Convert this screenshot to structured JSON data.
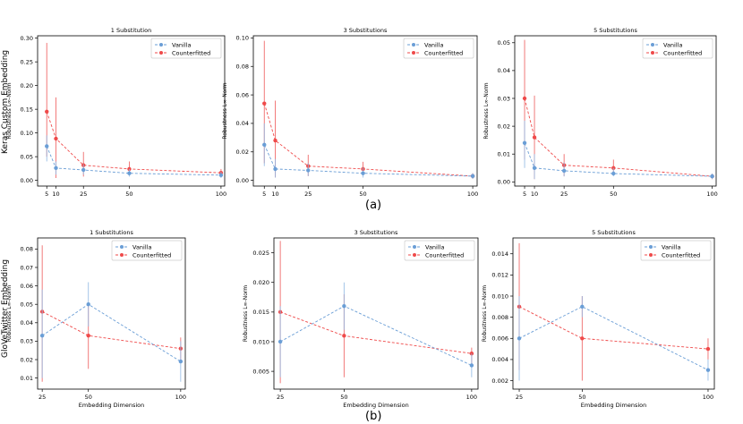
{
  "figure": {
    "caption_a": "(a)",
    "caption_b": "(b)",
    "row_label_a": "Keras Custom Embedding",
    "row_label_b": "GloVeTwitter Embedding",
    "colors": {
      "vanilla": "#6a9ed6",
      "counterfitted": "#ef4a4a",
      "vanilla_err": "#8fb7e3",
      "counterfitted_err": "#ee5b5b"
    }
  },
  "chart_data": [
    {
      "type": "line",
      "title": "1 Substitution",
      "xlabel": "",
      "ylabel": "Robustness L∞-Norm",
      "x": [
        5,
        10,
        25,
        50,
        100
      ],
      "xlim": [
        0,
        102
      ],
      "ylim": [
        -0.012,
        0.305
      ],
      "yticks": [
        0.0,
        0.05,
        0.1,
        0.15,
        0.2,
        0.25,
        0.3
      ],
      "ytick_labels": [
        "0.00",
        "0.05",
        "0.10",
        "0.15",
        "0.20",
        "0.25",
        "0.30"
      ],
      "xticks": [
        5,
        10,
        25,
        50,
        100
      ],
      "xtick_labels": [
        "5",
        "10",
        "25",
        "50",
        "100"
      ],
      "legend": [
        "Vanilla",
        "Counterfitted"
      ],
      "series": [
        {
          "name": "Vanilla",
          "values": [
            0.072,
            0.026,
            0.022,
            0.015,
            0.011
          ],
          "lo": [
            0.04,
            0.012,
            0.012,
            0.008,
            0.005
          ],
          "hi": [
            0.095,
            0.04,
            0.034,
            0.024,
            0.018
          ]
        },
        {
          "name": "Counterfitted",
          "values": [
            0.145,
            0.088,
            0.032,
            0.024,
            0.016
          ],
          "lo": [
            0.05,
            0.005,
            0.008,
            0.012,
            0.008
          ],
          "hi": [
            0.29,
            0.175,
            0.06,
            0.04,
            0.024
          ]
        }
      ]
    },
    {
      "type": "line",
      "title": "3 Substitutions",
      "xlabel": "",
      "ylabel": "Robustness L∞-Norm",
      "x": [
        5,
        10,
        25,
        50,
        100
      ],
      "xlim": [
        0,
        102
      ],
      "ylim": [
        -0.004,
        0.1015
      ],
      "yticks": [
        0.0,
        0.02,
        0.04,
        0.06,
        0.08,
        0.1
      ],
      "ytick_labels": [
        "0.00",
        "0.02",
        "0.04",
        "0.06",
        "0.08",
        "0.10"
      ],
      "xticks": [
        5,
        10,
        25,
        50,
        100
      ],
      "xtick_labels": [
        "5",
        "10",
        "25",
        "50",
        "100"
      ],
      "legend": [
        "Vanilla",
        "Counterfitted"
      ],
      "series": [
        {
          "name": "Vanilla",
          "values": [
            0.025,
            0.008,
            0.007,
            0.005,
            0.003
          ],
          "lo": [
            0.01,
            0.002,
            0.003,
            0.002,
            0.001
          ],
          "hi": [
            0.04,
            0.015,
            0.012,
            0.009,
            0.005
          ]
        },
        {
          "name": "Counterfitted",
          "values": [
            0.054,
            0.028,
            0.01,
            0.008,
            0.003
          ],
          "lo": [
            0.012,
            0.002,
            0.003,
            0.004,
            0.001
          ],
          "hi": [
            0.098,
            0.056,
            0.018,
            0.013,
            0.005
          ]
        }
      ]
    },
    {
      "type": "line",
      "title": "5 Substitutions",
      "xlabel": "",
      "ylabel": "Robustness L∞-Norm",
      "x": [
        5,
        10,
        25,
        50,
        100
      ],
      "xlim": [
        0,
        102
      ],
      "ylim": [
        -0.0015,
        0.0525
      ],
      "yticks": [
        0.0,
        0.01,
        0.02,
        0.03,
        0.04,
        0.05
      ],
      "ytick_labels": [
        "0.00",
        "0.01",
        "0.02",
        "0.03",
        "0.04",
        "0.05"
      ],
      "xticks": [
        5,
        10,
        25,
        50,
        100
      ],
      "xtick_labels": [
        "5",
        "10",
        "25",
        "50",
        "100"
      ],
      "legend": [
        "Vanilla",
        "Counterfitted"
      ],
      "series": [
        {
          "name": "Vanilla",
          "values": [
            0.014,
            0.005,
            0.004,
            0.003,
            0.002
          ],
          "lo": [
            0.005,
            0.001,
            0.002,
            0.002,
            0.001
          ],
          "hi": [
            0.022,
            0.01,
            0.007,
            0.005,
            0.003
          ]
        },
        {
          "name": "Counterfitted",
          "values": [
            0.03,
            0.016,
            0.006,
            0.005,
            0.002
          ],
          "lo": [
            0.008,
            0.001,
            0.002,
            0.003,
            0.001
          ],
          "hi": [
            0.051,
            0.031,
            0.01,
            0.008,
            0.003
          ]
        }
      ]
    },
    {
      "type": "line",
      "title": "1 Substitutions",
      "xlabel": "Embedding Dimension",
      "ylabel": "Robustness L∞-Norm",
      "x": [
        25,
        50,
        100
      ],
      "xlim": [
        22.5,
        102.5
      ],
      "ylim": [
        0.004,
        0.086
      ],
      "yticks": [
        0.01,
        0.02,
        0.03,
        0.04,
        0.05,
        0.06,
        0.07,
        0.08
      ],
      "ytick_labels": [
        "0.01",
        "0.02",
        "0.03",
        "0.04",
        "0.05",
        "0.06",
        "0.07",
        "0.08"
      ],
      "xticks": [
        25,
        50,
        100
      ],
      "xtick_labels": [
        "25",
        "50",
        "100"
      ],
      "legend": [
        "Vanilla",
        "Counterfitted"
      ],
      "series": [
        {
          "name": "Vanilla",
          "values": [
            0.033,
            0.05,
            0.019
          ],
          "lo": [
            0.01,
            0.038,
            0.008
          ],
          "hi": [
            0.058,
            0.062,
            0.03
          ]
        },
        {
          "name": "Counterfitted",
          "values": [
            0.046,
            0.033,
            0.026
          ],
          "lo": [
            0.008,
            0.015,
            0.018
          ],
          "hi": [
            0.082,
            0.051,
            0.032
          ]
        }
      ]
    },
    {
      "type": "line",
      "title": "3 Substitutions",
      "xlabel": "Embedding Dimension",
      "ylabel": "Robustness L∞-Norm",
      "x": [
        25,
        50,
        100
      ],
      "xlim": [
        22.5,
        102.5
      ],
      "ylim": [
        0.002,
        0.0275
      ],
      "yticks": [
        0.005,
        0.01,
        0.015,
        0.02,
        0.025
      ],
      "ytick_labels": [
        "0.005",
        "0.010",
        "0.015",
        "0.020",
        "0.025"
      ],
      "xticks": [
        25,
        50,
        100
      ],
      "xtick_labels": [
        "25",
        "50",
        "100"
      ],
      "legend": [
        "Vanilla",
        "Counterfitted"
      ],
      "series": [
        {
          "name": "Vanilla",
          "values": [
            0.01,
            0.016,
            0.006
          ],
          "lo": [
            0.004,
            0.012,
            0.004
          ],
          "hi": [
            0.016,
            0.02,
            0.008
          ]
        },
        {
          "name": "Counterfitted",
          "values": [
            0.015,
            0.011,
            0.008
          ],
          "lo": [
            0.003,
            0.004,
            0.006
          ],
          "hi": [
            0.027,
            0.018,
            0.009
          ]
        }
      ]
    },
    {
      "type": "line",
      "title": "5 Substitutions",
      "xlabel": "Embedding Dimension",
      "ylabel": "Robustness L∞-Norm",
      "x": [
        25,
        50,
        100
      ],
      "xlim": [
        22.5,
        102.5
      ],
      "ylim": [
        0.0012,
        0.0155
      ],
      "yticks": [
        0.002,
        0.004,
        0.006,
        0.008,
        0.01,
        0.012,
        0.014
      ],
      "ytick_labels": [
        "0.002",
        "0.004",
        "0.006",
        "0.008",
        "0.010",
        "0.012",
        "0.014"
      ],
      "xticks": [
        25,
        50,
        100
      ],
      "xtick_labels": [
        "25",
        "50",
        "100"
      ],
      "legend": [
        "Vanilla",
        "Counterfitted"
      ],
      "series": [
        {
          "name": "Vanilla",
          "values": [
            0.006,
            0.009,
            0.003
          ],
          "lo": [
            0.002,
            0.008,
            0.002
          ],
          "hi": [
            0.01,
            0.01,
            0.004
          ]
        },
        {
          "name": "Counterfitted",
          "values": [
            0.009,
            0.006,
            0.005
          ],
          "lo": [
            0.003,
            0.002,
            0.004
          ],
          "hi": [
            0.015,
            0.01,
            0.006
          ]
        }
      ]
    }
  ]
}
